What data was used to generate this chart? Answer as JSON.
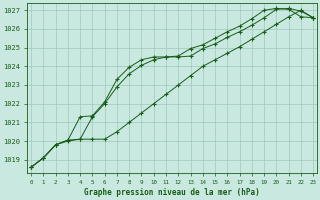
{
  "title": "Graphe pression niveau de la mer (hPa)",
  "background_color": "#c8e8e0",
  "grid_color": "#a0c8c0",
  "line_color": "#1a5c1a",
  "hours": [
    0,
    1,
    2,
    3,
    4,
    5,
    6,
    7,
    8,
    9,
    10,
    11,
    12,
    13,
    14,
    15,
    16,
    17,
    18,
    19,
    20,
    21,
    22,
    23
  ],
  "line1": [
    1018.6,
    1019.1,
    1019.8,
    1020.05,
    1021.3,
    1021.35,
    1022.1,
    1023.3,
    1023.95,
    1024.35,
    1024.5,
    1024.5,
    1024.55,
    1024.95,
    1025.15,
    1025.5,
    1025.85,
    1026.15,
    1026.55,
    1027.0,
    1027.1,
    1027.05,
    1026.65,
    1026.6
  ],
  "line2": [
    1018.6,
    1019.1,
    1019.8,
    1020.05,
    1020.1,
    1021.3,
    1022.0,
    1022.9,
    1023.6,
    1024.05,
    1024.35,
    1024.5,
    1024.5,
    1024.55,
    1024.95,
    1025.2,
    1025.55,
    1025.85,
    1026.2,
    1026.6,
    1027.05,
    1027.1,
    1026.95,
    1026.6
  ],
  "line3": [
    1018.6,
    1019.1,
    1019.8,
    1020.0,
    1020.1,
    1020.1,
    1020.1,
    1020.5,
    1021.0,
    1021.5,
    1022.0,
    1022.5,
    1023.0,
    1023.5,
    1024.0,
    1024.35,
    1024.7,
    1025.05,
    1025.45,
    1025.85,
    1026.25,
    1026.65,
    1027.0,
    1026.6
  ],
  "ylim": [
    1018.3,
    1027.4
  ],
  "yticks": [
    1019,
    1020,
    1021,
    1022,
    1023,
    1024,
    1025,
    1026,
    1027
  ],
  "xlim": [
    -0.3,
    23.3
  ]
}
